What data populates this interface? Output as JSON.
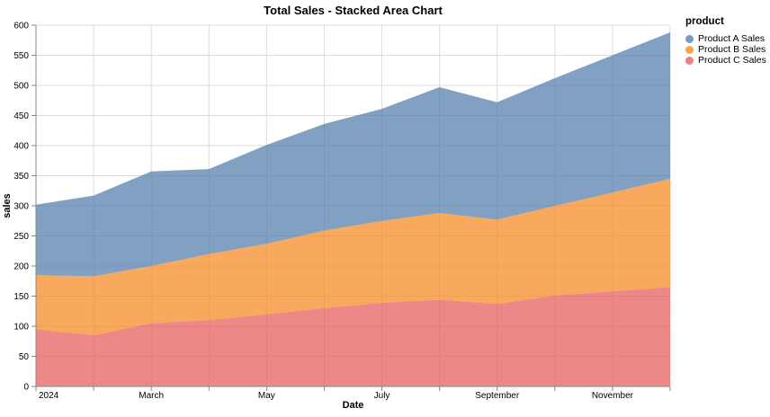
{
  "colors": {
    "grid": "#dddddd",
    "axis": "#888888",
    "text": "#000000",
    "background": "#ffffff",
    "product_a": "#4c78a8",
    "product_b": "#f58518",
    "product_c": "#e45756"
  },
  "legend": {
    "title": "product",
    "items": [
      {
        "label": "Product A Sales",
        "color": "#4c78a8"
      },
      {
        "label": "Product B Sales",
        "color": "#f58518"
      },
      {
        "label": "Product C Sales",
        "color": "#e45756"
      }
    ]
  },
  "chart_data": {
    "type": "area",
    "stacked": true,
    "title": "Total Sales - Stacked Area Chart",
    "xlabel": "Date",
    "ylabel": "sales",
    "ylim": [
      0,
      600
    ],
    "y_tick_step": 50,
    "grid": true,
    "legend_position": "top-right",
    "fill_opacity": 0.7,
    "x_values": [
      "2024-01",
      "2024-02",
      "2024-03",
      "2024-04",
      "2024-05",
      "2024-06",
      "2024-07",
      "2024-08",
      "2024-09",
      "2024-10",
      "2024-11",
      "2024-12"
    ],
    "x_tick_labels": [
      "2024",
      "",
      "March",
      "",
      "May",
      "",
      "July",
      "",
      "September",
      "",
      "November",
      ""
    ],
    "series": [
      {
        "name": "Product C Sales",
        "color": "#e45756",
        "values": [
          95,
          85,
          105,
          110,
          120,
          130,
          139,
          144,
          137,
          151,
          158,
          165
        ]
      },
      {
        "name": "Product B Sales",
        "color": "#f58518",
        "values": [
          90,
          98,
          95,
          110,
          117,
          129,
          136,
          144,
          140,
          149,
          164,
          180
        ]
      },
      {
        "name": "Product A Sales",
        "color": "#4c78a8",
        "values": [
          117,
          134,
          157,
          141,
          164,
          177,
          186,
          209,
          195,
          212,
          228,
          243
        ]
      }
    ],
    "stacked_totals": [
      302,
      317,
      357,
      361,
      401,
      436,
      461,
      497,
      472,
      512,
      550,
      588
    ],
    "cumulative_boundaries": {
      "product_c_top": [
        95,
        85,
        105,
        110,
        120,
        130,
        139,
        144,
        137,
        151,
        158,
        165
      ],
      "product_b_top": [
        185,
        183,
        200,
        220,
        237,
        259,
        275,
        288,
        277,
        300,
        322,
        345
      ],
      "product_a_top": [
        302,
        317,
        357,
        361,
        401,
        436,
        461,
        497,
        472,
        512,
        550,
        588
      ]
    }
  }
}
